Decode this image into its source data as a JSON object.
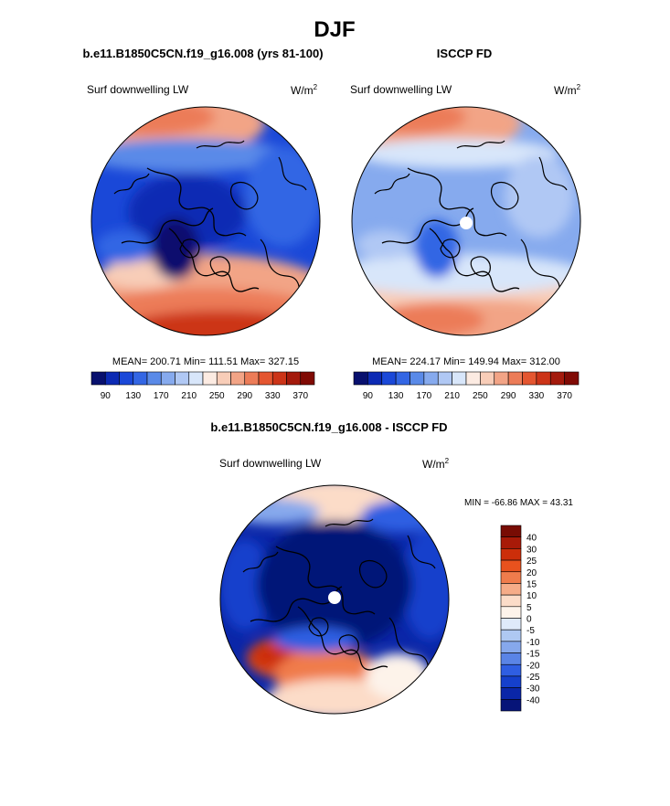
{
  "figure": {
    "season": "DJF"
  },
  "panels": {
    "model": {
      "case": "b.e11.B1850C5CN.f19_g16.008 (yrs 81-100)",
      "variable": "Surf downwelling LW",
      "units_base": "W/m",
      "units_exp": "2",
      "stats": "MEAN= 200.71  Min= 111.51  Max= 327.15",
      "colorbar_ticks": [
        "90",
        "130",
        "170",
        "210",
        "250",
        "290",
        "330",
        "370"
      ]
    },
    "obs": {
      "case": "ISCCP FD",
      "variable": "Surf downwelling LW",
      "units_base": "W/m",
      "units_exp": "2",
      "stats": "MEAN= 224.17  Min= 149.94  Max= 312.00",
      "colorbar_ticks": [
        "90",
        "130",
        "170",
        "210",
        "250",
        "290",
        "330",
        "370"
      ]
    },
    "diff": {
      "title": "b.e11.B1850C5CN.f19_g16.008 - ISCCP FD",
      "variable": "Surf downwelling LW",
      "units_base": "W/m",
      "units_exp": "2",
      "stats": "MIN = -66.86 MAX =  43.31",
      "colorbar_labels": [
        "40",
        "30",
        "25",
        "20",
        "15",
        "10",
        "5",
        "0",
        "-5",
        "-10",
        "-15",
        "-20",
        "-25",
        "-30",
        "-40"
      ]
    }
  },
  "palettes": {
    "abs": [
      "#08106e",
      "#0c2ab4",
      "#1a48d8",
      "#3366e4",
      "#5a8ae8",
      "#86aaee",
      "#b0c8f4",
      "#d8e6fa",
      "#fcebe2",
      "#f8cdb8",
      "#f2a486",
      "#ec7c58",
      "#e45630",
      "#cc3418",
      "#a41a0c",
      "#800a04"
    ],
    "diff": [
      "#780c04",
      "#a81a08",
      "#cc2e0a",
      "#e8521e",
      "#f07c4c",
      "#f6ac88",
      "#fcdcc8",
      "#fdf3ea",
      "#dfeafa",
      "#aec8f2",
      "#86a8ec",
      "#5a84e6",
      "#2f5ee2",
      "#1540cc",
      "#0a26a8",
      "#061478"
    ]
  },
  "chart_data": [
    {
      "type": "heatmap",
      "projection": "north-polar-stereographic",
      "title": "b.e11.B1850C5CN.f19_g16.008 (yrs 81-100)",
      "variable": "Surf downwelling LW",
      "units": "W/m2",
      "stats": {
        "mean": 200.71,
        "min": 111.51,
        "max": 327.15
      },
      "colorbar": {
        "levels": [
          90,
          130,
          170,
          210,
          250,
          290,
          330,
          370
        ],
        "range": [
          70,
          390
        ]
      },
      "regions": [
        {
          "name": "central Arctic / Canada / Siberia",
          "value": 150
        },
        {
          "name": "Greenland",
          "value": 120
        },
        {
          "name": "North Atlantic / Europe",
          "value": 320
        },
        {
          "name": "North Pacific",
          "value": 290
        }
      ]
    },
    {
      "type": "heatmap",
      "projection": "north-polar-stereographic",
      "title": "ISCCP FD",
      "variable": "Surf downwelling LW",
      "units": "W/m2",
      "stats": {
        "mean": 224.17,
        "min": 149.94,
        "max": 312.0
      },
      "colorbar": {
        "levels": [
          90,
          130,
          170,
          210,
          250,
          290,
          330,
          370
        ],
        "range": [
          70,
          390
        ]
      },
      "regions": [
        {
          "name": "central Arctic",
          "value": 190
        },
        {
          "name": "Greenland",
          "value": 165
        },
        {
          "name": "North Atlantic / Europe",
          "value": 300
        },
        {
          "name": "North Pacific",
          "value": 280
        }
      ]
    },
    {
      "type": "heatmap",
      "projection": "north-polar-stereographic",
      "title": "b.e11.B1850C5CN.f19_g16.008 - ISCCP FD",
      "variable": "Surf downwelling LW",
      "units": "W/m2",
      "stats": {
        "min": -66.86,
        "max": 43.31
      },
      "colorbar": {
        "levels": [
          -40,
          -30,
          -25,
          -20,
          -15,
          -10,
          -5,
          0,
          5,
          10,
          15,
          20,
          25,
          30,
          40
        ]
      },
      "regions": [
        {
          "name": "central Arctic",
          "value": -40
        },
        {
          "name": "Siberia / Canada",
          "value": -25
        },
        {
          "name": "Greenland Sea / Norwegian Sea",
          "value": 20
        },
        {
          "name": "North Pacific",
          "value": 5
        }
      ]
    }
  ]
}
